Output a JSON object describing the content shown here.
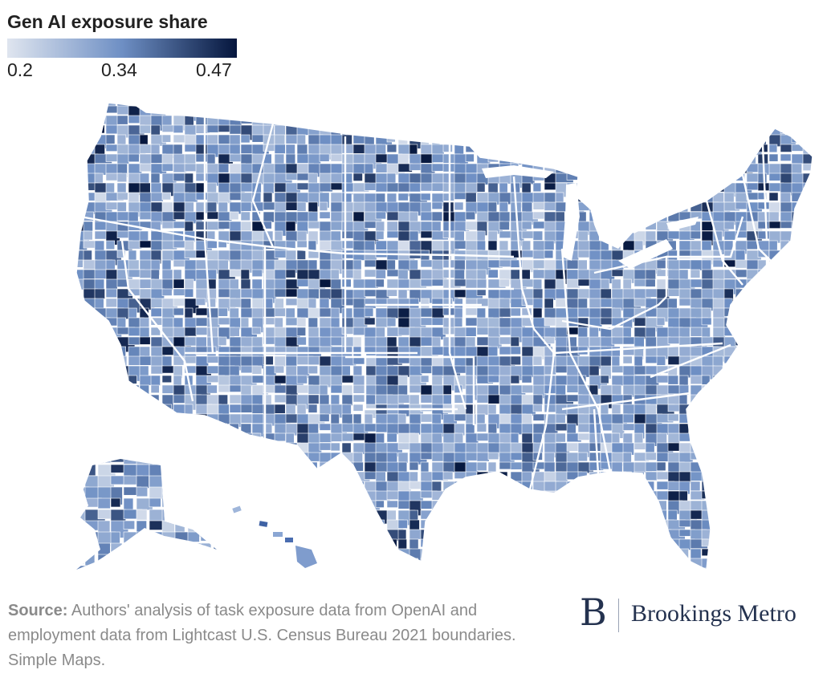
{
  "legend": {
    "title": "Gen AI exposure share",
    "ticks": [
      "0.2",
      "0.34",
      "0.47"
    ],
    "scale_min": 0.2,
    "scale_max": 0.47,
    "color_low": "#dfe5ef",
    "color_mid": "#6e8fc4",
    "color_high": "#05163d"
  },
  "map": {
    "type": "county choropleth",
    "region": "United States (contiguous states, Alaska, Hawaii)",
    "border_color": "#ffffff",
    "state_border_color": "#ffffff"
  },
  "source": {
    "label": "Source:",
    "text": "Authors' analysis of task exposure data from OpenAI and employment data from Lightcast U.S. Census Bureau 2021 boundaries. Simple Maps."
  },
  "logo": {
    "mark": "B",
    "name": "Brookings Metro",
    "color": "#24324f"
  }
}
